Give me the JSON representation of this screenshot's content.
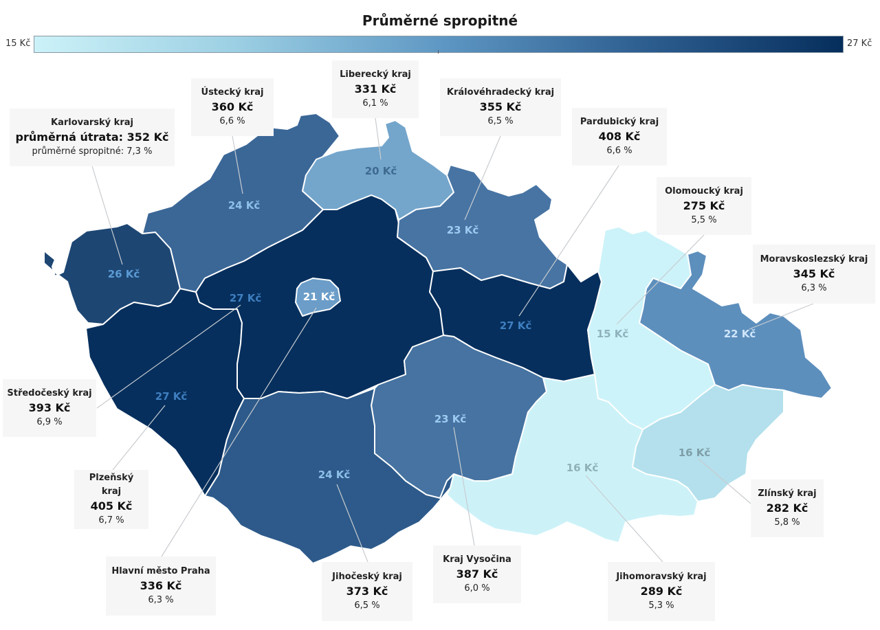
{
  "header": {
    "title": "Průměrné spropitné"
  },
  "legend": {
    "min_label": "15 Kč",
    "max_label": "27 Kč",
    "min": 15,
    "max": 27
  },
  "featured": {
    "name": "Karlovarský kraj",
    "spend_prefix": "průměrná útrata:",
    "spend": "352 Kč",
    "tip_prefix": "průměrné spropitné:",
    "tip": "7,3 %"
  },
  "regions": [
    {
      "id": "karlovarsky",
      "name": "Karlovarský kraj",
      "map_label": "26 Kč",
      "tip_kc": 26,
      "fill": "#1d4673",
      "label_color": "#5b9ad4"
    },
    {
      "id": "ustecky",
      "name": "Ústecký kraj",
      "spend": "360 Kč",
      "tip": "6,6 %",
      "map_label": "24 Kč",
      "tip_kc": 24,
      "fill": "#3b6797",
      "label_color": "#8ec0ea"
    },
    {
      "id": "liberecky",
      "name": "Liberecký kraj",
      "spend": "331 Kč",
      "tip": "6,1 %",
      "map_label": "20 Kč",
      "tip_kc": 20,
      "fill": "#74a6cc",
      "label_color": "#3f6a90"
    },
    {
      "id": "kralovehradecky",
      "name": "Královéhradecký kraj",
      "spend": "355 Kč",
      "tip": "6,5 %",
      "map_label": "23 Kč",
      "tip_kc": 23,
      "fill": "#4774a3",
      "label_color": "#9ccbf2"
    },
    {
      "id": "pardubicky",
      "name": "Pardubický kraj",
      "spend": "408 Kč",
      "tip": "6,6 %",
      "map_label": "27 Kč",
      "tip_kc": 27,
      "fill": "#062f5d",
      "label_color": "#3f7fc0"
    },
    {
      "id": "olomoucky",
      "name": "Olomoucký kraj",
      "spend": "275 Kč",
      "tip": "5,5 %",
      "map_label": "15 Kč",
      "tip_kc": 15,
      "fill": "#ccf3f9",
      "label_color": "#8fb2bc"
    },
    {
      "id": "moravskoslezsky",
      "name": "Moravskoslezský kraj",
      "spend": "345 Kč",
      "tip": "6,3 %",
      "map_label": "22 Kč",
      "tip_kc": 22,
      "fill": "#5d8fbd",
      "label_color": "#cfe6fa"
    },
    {
      "id": "zlinsky",
      "name": "Zlínský kraj",
      "spend": "282 Kč",
      "tip": "5,8 %",
      "map_label": "16 Kč",
      "tip_kc": 16,
      "fill": "#b3e0ec",
      "label_color": "#7e9ea8"
    },
    {
      "id": "jihomoravsky",
      "name": "Jihomoravský kraj",
      "spend": "289 Kč",
      "tip": "5,3 %",
      "map_label": "16 Kč",
      "tip_kc": 16,
      "fill": "#ccf2f8",
      "label_color": "#8fb0b8"
    },
    {
      "id": "vysocina",
      "name": "Kraj Vysočina",
      "spend": "387 Kč",
      "tip": "6,0 %",
      "map_label": "23 Kč",
      "tip_kc": 23,
      "fill": "#4673a1",
      "label_color": "#9ccbf2"
    },
    {
      "id": "jihocesky",
      "name": "Jihočeský kraj",
      "spend": "373 Kč",
      "tip": "6,5 %",
      "map_label": "24 Kč",
      "tip_kc": 24,
      "fill": "#2d5a8a",
      "label_color": "#8ec0ea"
    },
    {
      "id": "plzensky",
      "name": "Plzeňský kraj",
      "spend": "405 Kč",
      "tip": "6,7 %",
      "map_label": "27 Kč",
      "tip_kc": 27,
      "fill": "#062f5d",
      "label_color": "#3f7fc0"
    },
    {
      "id": "stredocesky",
      "name": "Středočeský kraj",
      "spend": "393 Kč",
      "tip": "6,9 %",
      "map_label": "27 Kč",
      "tip_kc": 27,
      "fill": "#062f5d",
      "label_color": "#3f7fc0"
    },
    {
      "id": "praha",
      "name": "Hlavní město Praha",
      "spend": "336 Kč",
      "tip": "6,3 %",
      "map_label": "21 Kč",
      "tip_kc": 21,
      "fill": "#6b9dc8",
      "label_color": "#ffffff"
    }
  ]
}
